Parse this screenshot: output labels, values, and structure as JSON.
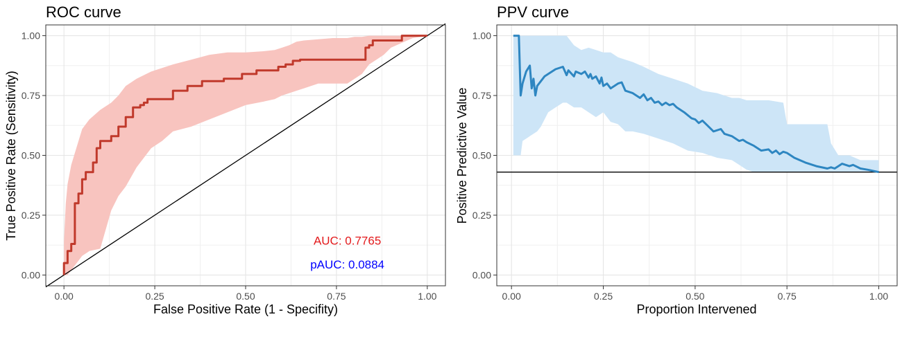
{
  "chart_data": [
    {
      "type": "line",
      "title": "ROC curve",
      "xlabel": "False Positive Rate (1 - Specifity)",
      "ylabel": "True Positive Rate (Sensitivity)",
      "xlim": [
        -0.05,
        1.05
      ],
      "ylim": [
        -0.045,
        1.045
      ],
      "xticks": [
        0,
        0.25,
        0.5,
        0.75,
        1
      ],
      "xtick_labels": [
        "0.00",
        "0.25",
        "0.50",
        "0.75",
        "1.00"
      ],
      "yticks": [
        0,
        0.25,
        0.5,
        0.75,
        1
      ],
      "ytick_labels": [
        "0.00",
        "0.25",
        "0.50",
        "0.75",
        "1.00"
      ],
      "grid": true,
      "colors": {
        "line": "#c0392b",
        "band": "#f8c4bf",
        "reference": "#000000",
        "auc_text": "#e31a1c",
        "pauc_text": "#0000ff"
      },
      "annotations": [
        {
          "text": "AUC: 0.7765",
          "x": 0.78,
          "y": 0.145
        },
        {
          "text": "pAUC: 0.0884",
          "x": 0.78,
          "y": 0.045
        }
      ],
      "reference_line": {
        "type": "diagonal",
        "from": [
          -0.05,
          -0.05
        ],
        "to": [
          1.05,
          1.05
        ]
      },
      "series": [
        {
          "x": [
            0,
            0,
            0.01,
            0.01,
            0.02,
            0.02,
            0.03,
            0.03,
            0.04,
            0.04,
            0.05,
            0.05,
            0.06,
            0.06,
            0.07,
            0.07,
            0.08,
            0.08,
            0.09,
            0.09,
            0.1,
            0.1,
            0.13,
            0.13,
            0.15,
            0.15,
            0.17,
            0.17,
            0.19,
            0.19,
            0.21,
            0.21,
            0.22,
            0.22,
            0.23,
            0.23,
            0.24,
            0.24,
            0.3,
            0.3,
            0.34,
            0.34,
            0.38,
            0.38,
            0.44,
            0.44,
            0.49,
            0.49,
            0.53,
            0.53,
            0.59,
            0.59,
            0.61,
            0.61,
            0.63,
            0.63,
            0.65,
            0.65,
            0.83,
            0.83,
            0.84,
            0.84,
            0.85,
            0.85,
            0.93,
            0.93,
            1
          ],
          "y": [
            0,
            0.05,
            0.05,
            0.1,
            0.1,
            0.13,
            0.13,
            0.3,
            0.3,
            0.34,
            0.34,
            0.4,
            0.4,
            0.43,
            0.43,
            0.43,
            0.43,
            0.47,
            0.47,
            0.53,
            0.53,
            0.56,
            0.56,
            0.58,
            0.58,
            0.62,
            0.62,
            0.66,
            0.66,
            0.7,
            0.7,
            0.71,
            0.71,
            0.72,
            0.72,
            0.735,
            0.735,
            0.735,
            0.735,
            0.77,
            0.77,
            0.79,
            0.79,
            0.81,
            0.81,
            0.82,
            0.82,
            0.84,
            0.84,
            0.855,
            0.855,
            0.87,
            0.87,
            0.88,
            0.88,
            0.895,
            0.895,
            0.9,
            0.9,
            0.95,
            0.95,
            0.96,
            0.96,
            0.98,
            0.98,
            1.0,
            1.0
          ]
        }
      ],
      "band": {
        "x": [
          0,
          0.005,
          0.01,
          0.02,
          0.03,
          0.05,
          0.07,
          0.1,
          0.13,
          0.15,
          0.17,
          0.2,
          0.24,
          0.27,
          0.3,
          0.35,
          0.4,
          0.45,
          0.5,
          0.55,
          0.58,
          0.6,
          0.62,
          0.64,
          0.66,
          0.7,
          0.74,
          0.78,
          0.8,
          0.82,
          0.84,
          0.86,
          0.88,
          0.9,
          0.93,
          0.96,
          1
        ],
        "upper": [
          0.14,
          0.3,
          0.38,
          0.46,
          0.51,
          0.61,
          0.65,
          0.69,
          0.72,
          0.75,
          0.79,
          0.82,
          0.85,
          0.865,
          0.88,
          0.9,
          0.92,
          0.93,
          0.93,
          0.935,
          0.94,
          0.95,
          0.96,
          0.975,
          0.98,
          0.985,
          0.99,
          0.99,
          0.995,
          0.995,
          1,
          1,
          1,
          1,
          1,
          1,
          1
        ],
        "lower": [
          0,
          0,
          0,
          0.02,
          0.04,
          0.08,
          0.1,
          0.11,
          0.27,
          0.33,
          0.37,
          0.45,
          0.53,
          0.56,
          0.6,
          0.62,
          0.65,
          0.68,
          0.71,
          0.725,
          0.735,
          0.75,
          0.76,
          0.77,
          0.78,
          0.8,
          0.8,
          0.8,
          0.82,
          0.84,
          0.88,
          0.9,
          0.92,
          0.95,
          0.97,
          0.99,
          1
        ]
      }
    },
    {
      "type": "line",
      "title": "PPV curve",
      "xlabel": "Proportion Intervened",
      "ylabel": "Positive Predictive Value",
      "xlim": [
        -0.04,
        1.05
      ],
      "ylim": [
        -0.045,
        1.045
      ],
      "xticks": [
        0,
        0.25,
        0.5,
        0.75,
        1
      ],
      "xtick_labels": [
        "0.00",
        "0.25",
        "0.50",
        "0.75",
        "1.00"
      ],
      "yticks": [
        0,
        0.25,
        0.5,
        0.75,
        1
      ],
      "ytick_labels": [
        "0.00",
        "0.25",
        "0.50",
        "0.75",
        "1.00"
      ],
      "grid": true,
      "colors": {
        "line": "#2e86c1",
        "band": "#cde5f7",
        "reference": "#000000"
      },
      "reference_line": {
        "type": "horizontal",
        "y": 0.43
      },
      "series": [
        {
          "x": [
            0.005,
            0.01,
            0.015,
            0.02,
            0.025,
            0.03,
            0.04,
            0.05,
            0.055,
            0.06,
            0.065,
            0.07,
            0.08,
            0.09,
            0.1,
            0.12,
            0.14,
            0.15,
            0.155,
            0.17,
            0.175,
            0.19,
            0.2,
            0.21,
            0.215,
            0.22,
            0.23,
            0.24,
            0.245,
            0.25,
            0.26,
            0.27,
            0.28,
            0.29,
            0.3,
            0.31,
            0.33,
            0.35,
            0.36,
            0.37,
            0.38,
            0.39,
            0.4,
            0.41,
            0.42,
            0.43,
            0.44,
            0.45,
            0.47,
            0.49,
            0.5,
            0.51,
            0.52,
            0.55,
            0.57,
            0.58,
            0.6,
            0.62,
            0.63,
            0.64,
            0.66,
            0.68,
            0.7,
            0.71,
            0.72,
            0.73,
            0.74,
            0.75,
            0.77,
            0.8,
            0.83,
            0.86,
            0.87,
            0.88,
            0.89,
            0.9,
            0.92,
            0.93,
            0.95,
            0.97,
            1.0
          ],
          "y": [
            1.0,
            1.0,
            1.0,
            1.0,
            0.75,
            0.8,
            0.85,
            0.875,
            0.78,
            0.82,
            0.75,
            0.79,
            0.81,
            0.83,
            0.84,
            0.86,
            0.87,
            0.835,
            0.855,
            0.83,
            0.85,
            0.84,
            0.85,
            0.825,
            0.84,
            0.82,
            0.83,
            0.8,
            0.825,
            0.79,
            0.8,
            0.78,
            0.79,
            0.8,
            0.805,
            0.77,
            0.76,
            0.74,
            0.755,
            0.73,
            0.74,
            0.72,
            0.725,
            0.71,
            0.72,
            0.71,
            0.715,
            0.7,
            0.68,
            0.655,
            0.65,
            0.635,
            0.645,
            0.6,
            0.61,
            0.59,
            0.58,
            0.56,
            0.565,
            0.555,
            0.54,
            0.52,
            0.525,
            0.51,
            0.52,
            0.505,
            0.515,
            0.51,
            0.49,
            0.47,
            0.455,
            0.445,
            0.45,
            0.445,
            0.455,
            0.465,
            0.455,
            0.46,
            0.445,
            0.44,
            0.43
          ]
        }
      ],
      "band": {
        "x": [
          0.005,
          0.01,
          0.02,
          0.025,
          0.03,
          0.05,
          0.07,
          0.08,
          0.1,
          0.12,
          0.14,
          0.15,
          0.17,
          0.19,
          0.21,
          0.23,
          0.25,
          0.27,
          0.29,
          0.31,
          0.33,
          0.36,
          0.4,
          0.44,
          0.48,
          0.52,
          0.56,
          0.6,
          0.62,
          0.64,
          0.66,
          0.7,
          0.74,
          0.75,
          0.78,
          0.82,
          0.86,
          0.87,
          0.89,
          0.92,
          0.95,
          0.98,
          1.0
        ],
        "upper": [
          1.0,
          1.0,
          1.0,
          1.0,
          1.0,
          1.0,
          1.0,
          1.0,
          1.0,
          1.0,
          1.0,
          1.0,
          0.96,
          0.94,
          0.95,
          0.94,
          0.93,
          0.93,
          0.91,
          0.9,
          0.89,
          0.87,
          0.84,
          0.82,
          0.8,
          0.77,
          0.76,
          0.74,
          0.74,
          0.73,
          0.73,
          0.73,
          0.72,
          0.63,
          0.63,
          0.63,
          0.63,
          0.55,
          0.5,
          0.5,
          0.48,
          0.48,
          0.48
        ],
        "lower": [
          0.5,
          0.5,
          0.5,
          0.5,
          0.56,
          0.58,
          0.6,
          0.62,
          0.68,
          0.7,
          0.72,
          0.72,
          0.7,
          0.7,
          0.68,
          0.66,
          0.68,
          0.64,
          0.63,
          0.6,
          0.6,
          0.59,
          0.57,
          0.55,
          0.52,
          0.51,
          0.49,
          0.48,
          0.46,
          0.44,
          0.43,
          0.43,
          0.43,
          0.43,
          0.43,
          0.43,
          0.43,
          0.43,
          0.43,
          0.43,
          0.43,
          0.43,
          0.43
        ]
      }
    }
  ]
}
